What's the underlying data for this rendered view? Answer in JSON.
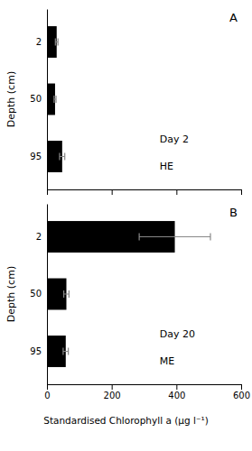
{
  "chart_data": [
    {
      "type": "bar",
      "orientation": "horizontal",
      "title": "A",
      "categories": [
        "2",
        "50",
        "95"
      ],
      "values": [
        30,
        25,
        47
      ],
      "errors": [
        4,
        3,
        8
      ],
      "color": "#000000",
      "ylabel": "Depth (cm)",
      "xlim": [
        0,
        600
      ],
      "xticks": [
        0,
        200,
        400,
        600
      ],
      "tick_labels": "y",
      "annotations": [
        "Day 2",
        "HE"
      ]
    },
    {
      "type": "bar",
      "orientation": "horizontal",
      "title": "B",
      "categories": [
        "2",
        "50",
        "95"
      ],
      "values": [
        395,
        60,
        58
      ],
      "errors": [
        110,
        8,
        8
      ],
      "color": "#000000",
      "ylabel": "Depth (cm)",
      "xlabel": "Standardised Chlorophyll a (μg l⁻¹)",
      "xlim": [
        0,
        600
      ],
      "xticks": [
        0,
        200,
        400,
        600
      ],
      "annotations": [
        "Day 20",
        "ME"
      ]
    }
  ]
}
